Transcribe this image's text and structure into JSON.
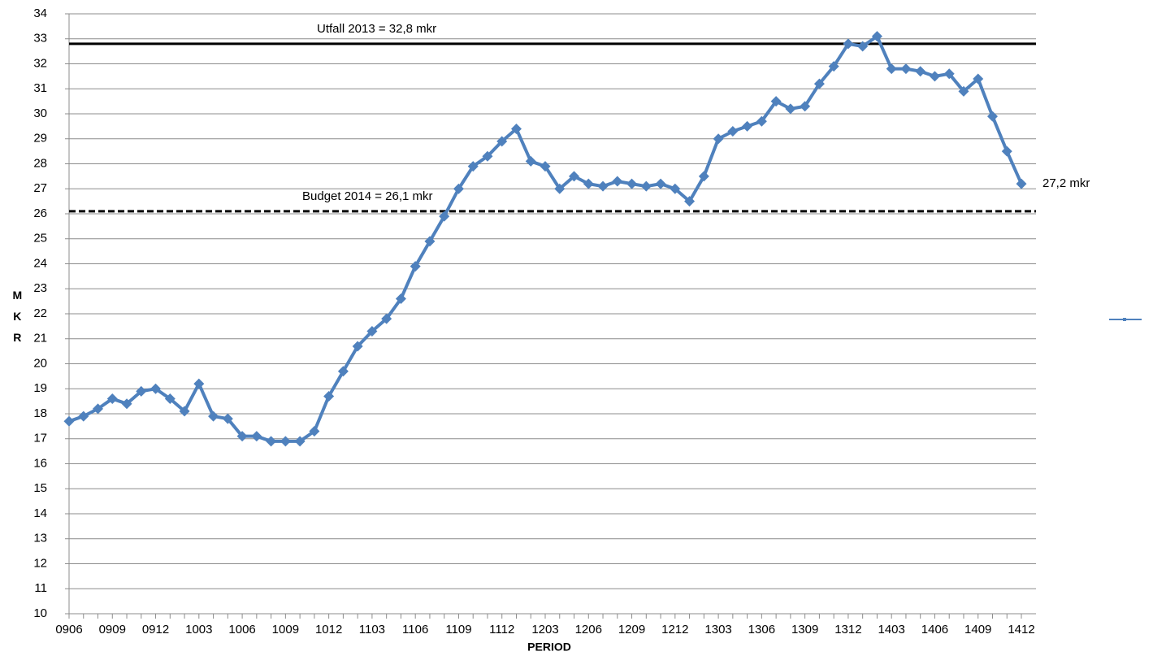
{
  "chart_data": {
    "type": "line",
    "xlabel": "PERIOD",
    "ylabel": "MKR",
    "categories": [
      "0906",
      null,
      null,
      "0909",
      null,
      null,
      "0912",
      null,
      null,
      "1003",
      null,
      null,
      "1006",
      null,
      null,
      "1009",
      null,
      null,
      "1012",
      null,
      null,
      "1103",
      null,
      null,
      "1106",
      null,
      null,
      "1109",
      null,
      null,
      "1112",
      null,
      null,
      "1203",
      null,
      null,
      "1206",
      null,
      null,
      "1209",
      null,
      null,
      "1212",
      null,
      null,
      "1303",
      null,
      null,
      "1306",
      null,
      null,
      "1309",
      null,
      null,
      "1312",
      null,
      null,
      "1403",
      null,
      null,
      "1406",
      null,
      null,
      "1409",
      null,
      null,
      "1412"
    ],
    "series": [
      {
        "color": "#4f81bd",
        "values": [
          17.7,
          17.9,
          18.2,
          18.6,
          18.4,
          18.9,
          19.0,
          18.6,
          18.1,
          19.2,
          17.9,
          17.8,
          17.1,
          17.1,
          16.9,
          16.9,
          16.9,
          17.3,
          18.7,
          19.7,
          20.7,
          21.3,
          21.8,
          22.6,
          23.9,
          24.9,
          25.9,
          27.0,
          27.9,
          28.3,
          28.9,
          29.4,
          28.1,
          27.9,
          27.0,
          27.5,
          27.2,
          27.1,
          27.3,
          27.2,
          27.1,
          27.2,
          27.0,
          26.5,
          27.5,
          29.0,
          29.3,
          29.5,
          29.7,
          30.5,
          30.2,
          30.3,
          31.2,
          31.9,
          32.8,
          32.7,
          33.1,
          31.8,
          31.8,
          31.7,
          31.5,
          31.6,
          30.9,
          31.4,
          29.9,
          28.5,
          27.2
        ]
      }
    ],
    "reference_lines": [
      {
        "label": "Utfall 2013 = 32,8 mkr",
        "value": 32.8,
        "style": "solid"
      },
      {
        "label": "Budget 2014 = 26,1 mkr",
        "value": 26.1,
        "style": "dashed"
      }
    ],
    "end_label": {
      "text": "27,2 mkr",
      "value": 27.2
    },
    "ylim": [
      10,
      34
    ],
    "yticks": [
      10,
      11,
      12,
      13,
      14,
      15,
      16,
      17,
      18,
      19,
      20,
      21,
      22,
      23,
      24,
      25,
      26,
      27,
      28,
      29,
      30,
      31,
      32,
      33,
      34
    ],
    "grid": true
  }
}
